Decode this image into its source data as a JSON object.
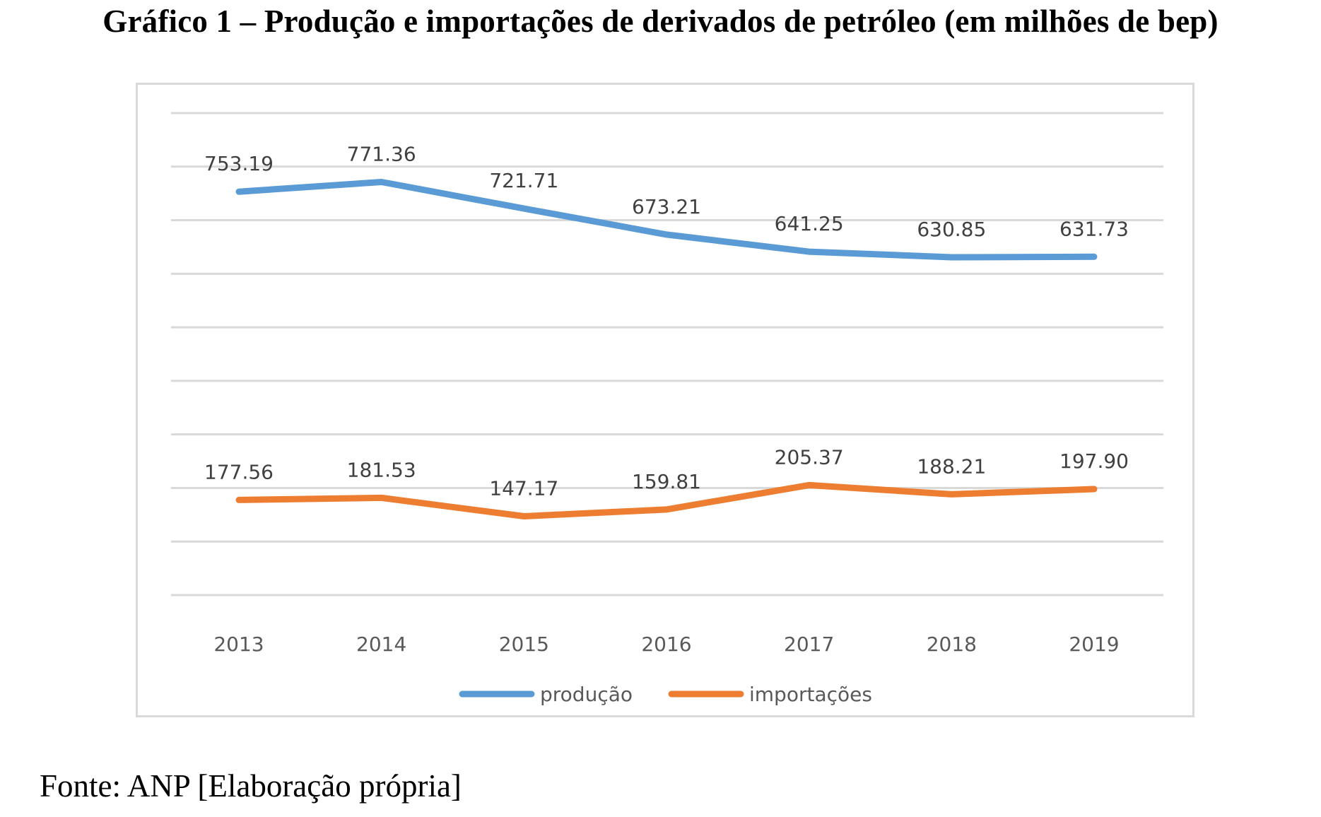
{
  "title": "Gráfico 1 – Produção e importações de derivados de petróleo (em milhões de bep)",
  "footer": "Fonte: ANP [Elaboração própria]",
  "chart_data": {
    "type": "line",
    "title": "Gráfico 1 – Produção e importações de derivados de petróleo (em milhões de bep)",
    "xlabel": "",
    "ylabel": "",
    "categories": [
      "2013",
      "2014",
      "2015",
      "2016",
      "2017",
      "2018",
      "2019"
    ],
    "ylim": [
      0,
      900
    ],
    "ytick_step": 100,
    "y_tick_labels_visible": false,
    "grid": true,
    "legend_position": "bottom",
    "data_labels": true,
    "series": [
      {
        "name": "produção",
        "color": "#5B9BD5",
        "values": [
          753.19,
          771.36,
          721.71,
          673.21,
          641.25,
          630.85,
          631.73
        ],
        "labels": [
          "753.19",
          "771.36",
          "721.71",
          "673.21",
          "641.25",
          "630.85",
          "631.73"
        ]
      },
      {
        "name": "importações",
        "color": "#ED7D31",
        "values": [
          177.56,
          181.53,
          147.17,
          159.81,
          205.37,
          188.21,
          197.9
        ],
        "labels": [
          "177.56",
          "181.53",
          "147.17",
          "159.81",
          "205.37",
          "188.21",
          "197.90"
        ]
      }
    ],
    "source": "Fonte: ANP [Elaboração própria]"
  }
}
